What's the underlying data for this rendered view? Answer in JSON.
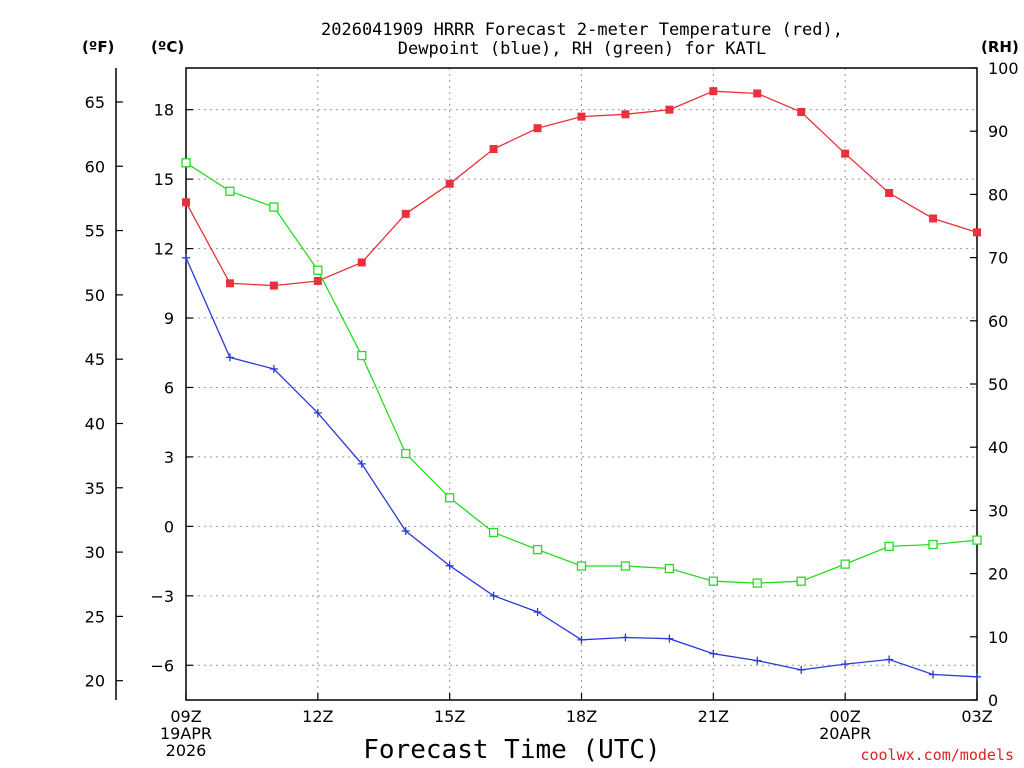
{
  "chart_data": {
    "type": "line",
    "title_line1": "2026041909 HRRR Forecast 2-meter Temperature (red),",
    "title_line2": "Dewpoint (blue), RH (green) for KATL",
    "xlabel": "Forecast Time (UTC)",
    "credit": "coolwx.com/models",
    "unit_f": "(ºF)",
    "unit_c": "(ºC)",
    "unit_rh": "(RH)",
    "x_hours": [
      9,
      10,
      11,
      12,
      13,
      14,
      15,
      16,
      17,
      18,
      19,
      20,
      21,
      22,
      23,
      24,
      25,
      26,
      27
    ],
    "x_ticks": [
      {
        "hour": 9,
        "lines": [
          "09Z",
          "19APR",
          "2026"
        ]
      },
      {
        "hour": 12,
        "lines": [
          "12Z"
        ]
      },
      {
        "hour": 15,
        "lines": [
          "15Z"
        ]
      },
      {
        "hour": 18,
        "lines": [
          "18Z"
        ]
      },
      {
        "hour": 21,
        "lines": [
          "21Z"
        ]
      },
      {
        "hour": 24,
        "lines": [
          "00Z",
          "20APR"
        ]
      },
      {
        "hour": 27,
        "lines": [
          "03Z"
        ]
      }
    ],
    "ylim_c": [
      -7.5,
      19.8
    ],
    "ylim_rh": [
      0,
      100
    ],
    "y_ticks_c": [
      -6,
      -3,
      0,
      3,
      6,
      9,
      12,
      15,
      18
    ],
    "y_ticks_f": [
      20,
      25,
      30,
      35,
      40,
      45,
      50,
      55,
      60,
      65
    ],
    "y_ticks_rh": [
      0,
      10,
      20,
      30,
      40,
      50,
      60,
      70,
      80,
      90,
      100
    ],
    "series": [
      {
        "name": "Temperature",
        "unit": "C",
        "color": "#e8313a",
        "marker": "filled-square",
        "values": [
          14.0,
          10.5,
          10.4,
          10.6,
          11.4,
          13.5,
          14.8,
          16.3,
          17.2,
          17.7,
          17.8,
          18.0,
          18.8,
          18.7,
          17.9,
          16.1,
          14.4,
          13.3,
          12.7
        ]
      },
      {
        "name": "Dewpoint",
        "unit": "C",
        "color": "#2b3bd8",
        "marker": "plus",
        "values": [
          11.6,
          7.3,
          6.8,
          4.9,
          2.7,
          -0.2,
          -1.7,
          -3.0,
          -3.7,
          -4.9,
          -4.8,
          -4.85,
          -5.5,
          -5.8,
          -6.2,
          -5.95,
          -5.75,
          -6.4,
          -6.5
        ]
      },
      {
        "name": "RH",
        "unit": "%",
        "color": "#22dd22",
        "marker": "open-square",
        "values": [
          85.0,
          80.5,
          78.0,
          68.0,
          54.5,
          39.0,
          32.0,
          26.5,
          23.8,
          21.2,
          21.2,
          20.8,
          18.8,
          18.5,
          18.8,
          21.5,
          24.3,
          24.6,
          25.3
        ]
      }
    ]
  }
}
